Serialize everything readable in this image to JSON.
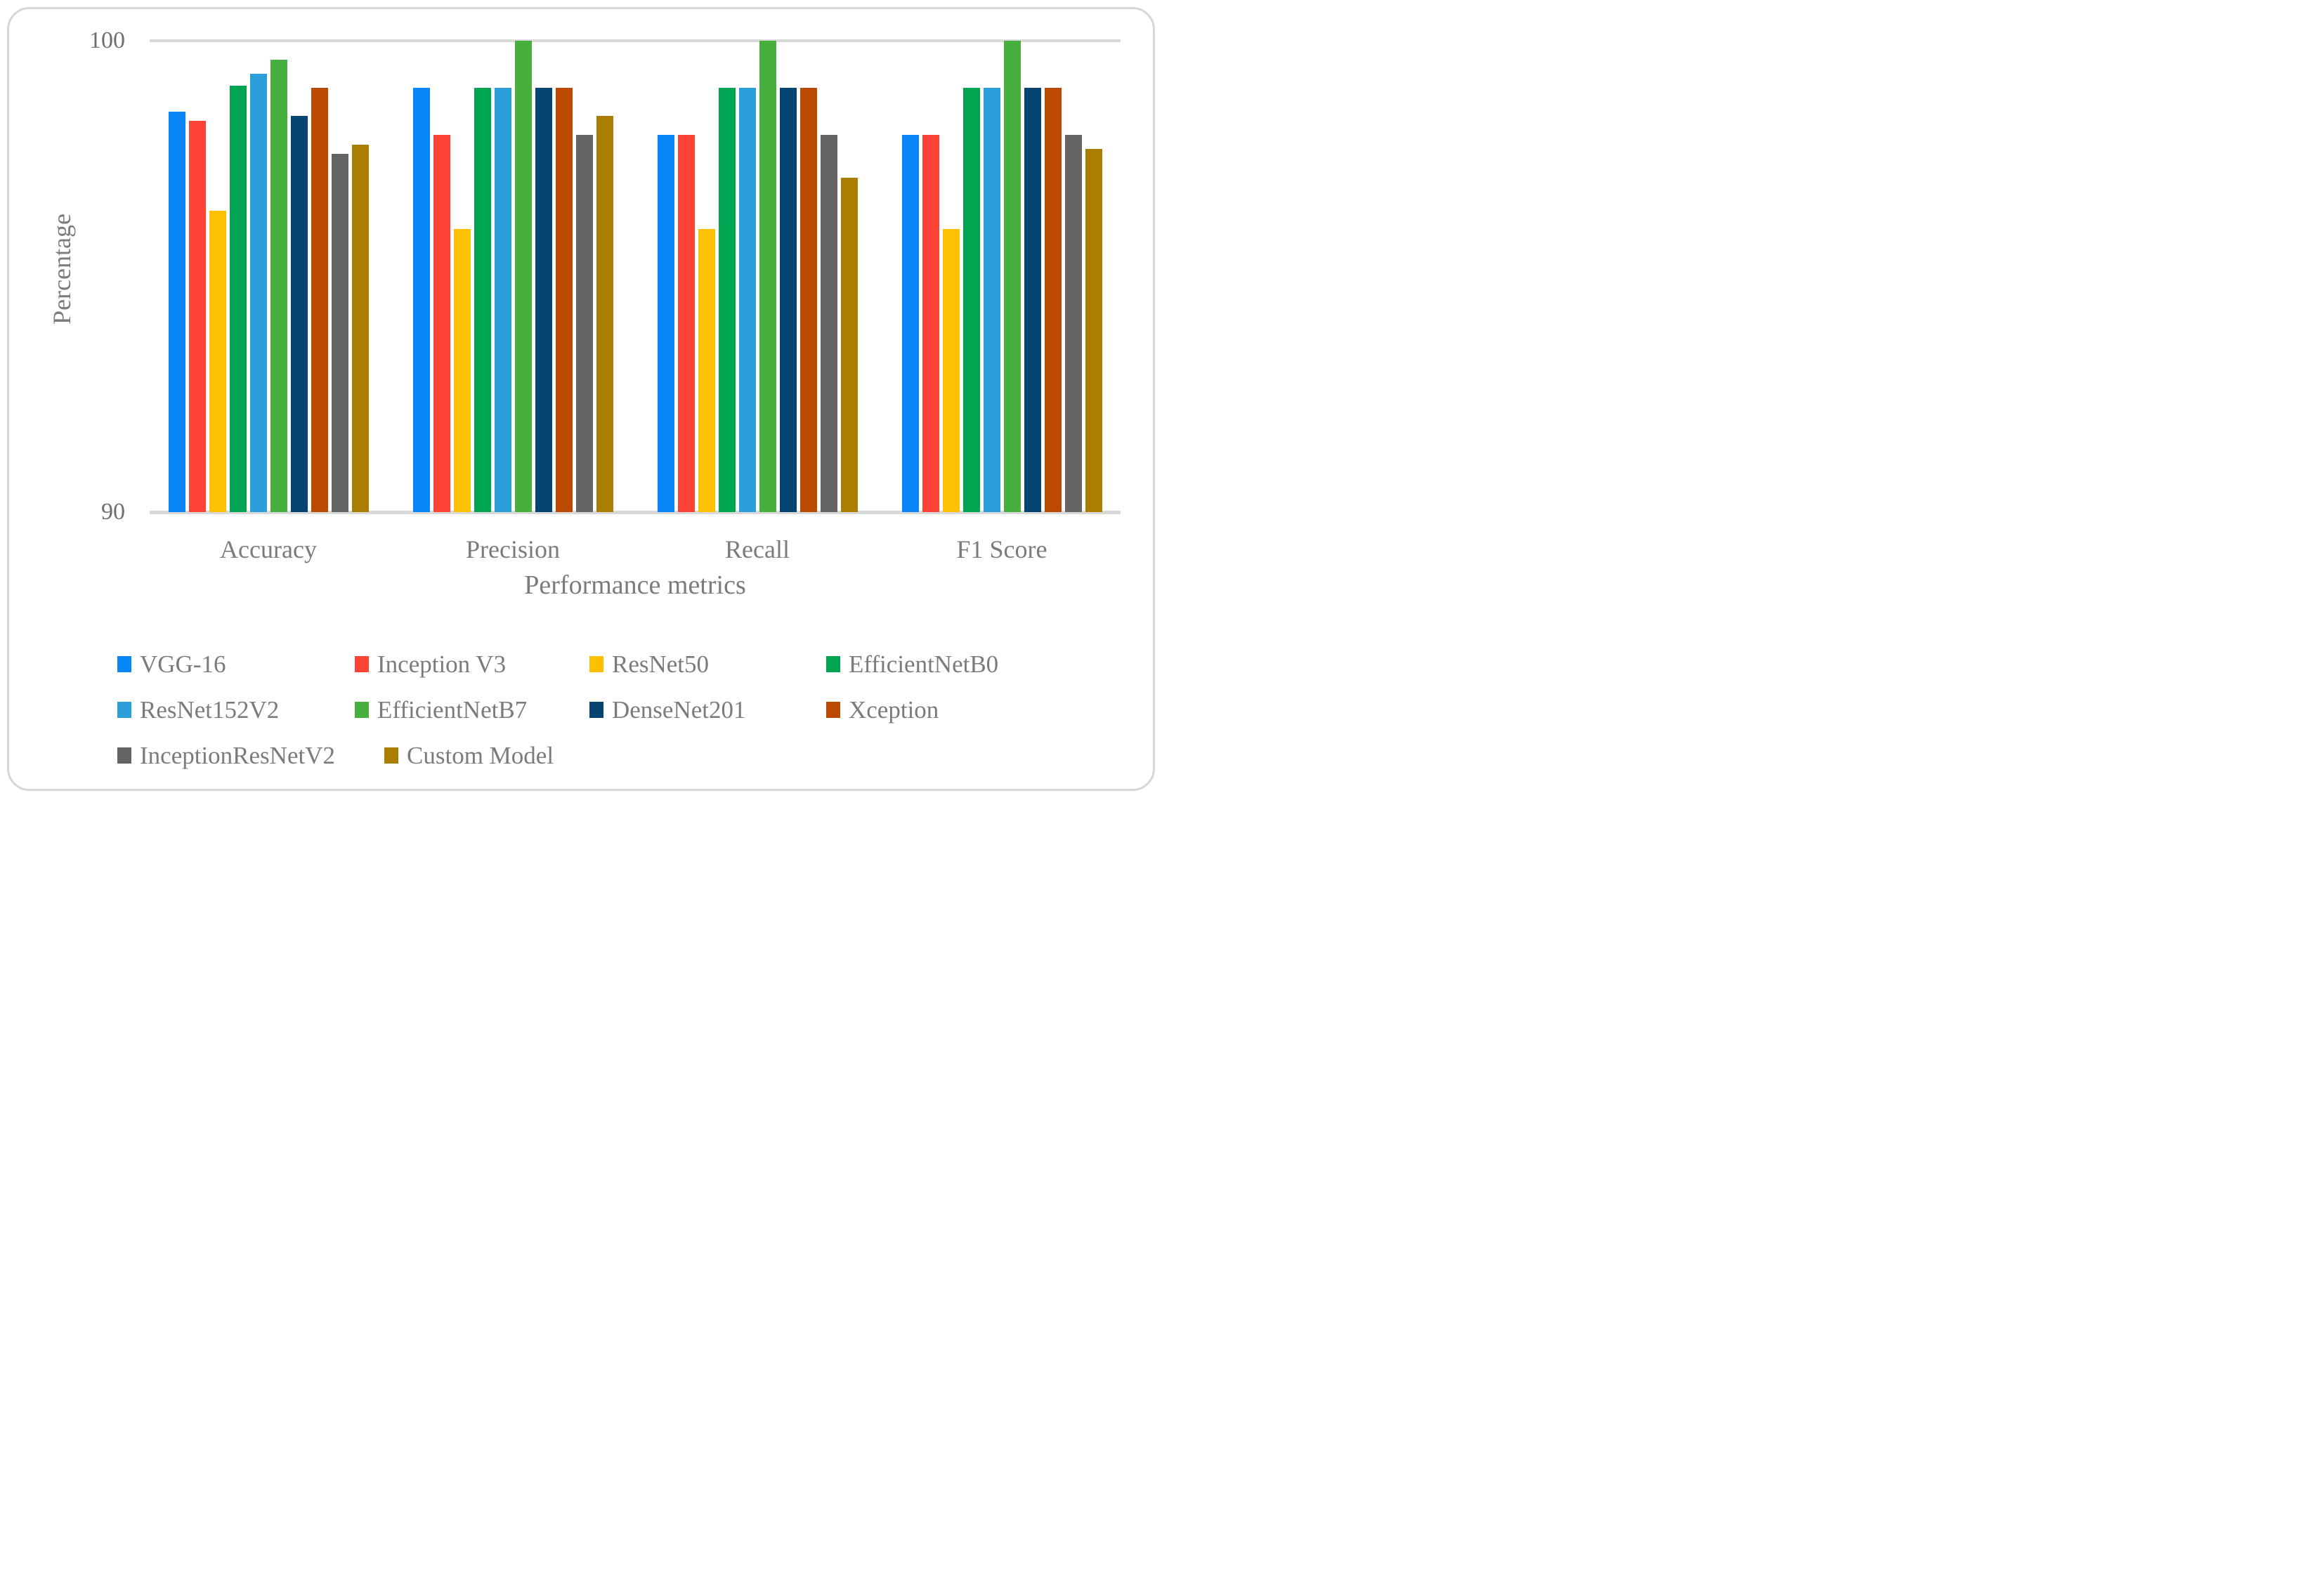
{
  "chart_data": {
    "type": "bar",
    "title": "",
    "xlabel": "Performance metrics",
    "ylabel": "Percentage",
    "ylim": [
      90,
      100
    ],
    "yticks": [
      100,
      90
    ],
    "ytick_labels": [
      "100",
      "90"
    ],
    "grid": "horizontal: gridline at 100 (top) and axis baseline at 90",
    "legend_position": "bottom-left, three rows",
    "categories": [
      "Accuracy",
      "Precision",
      "Recall",
      "F1 Score"
    ],
    "series": [
      {
        "name": "VGG-16",
        "color": "#0886F8",
        "values": [
          98.5,
          99.0,
          98.0,
          98.0
        ]
      },
      {
        "name": "Inception V3",
        "color": "#FC4336",
        "values": [
          98.3,
          98.0,
          98.0,
          98.0
        ]
      },
      {
        "name": "ResNet50",
        "color": "#FEC003",
        "values": [
          96.4,
          96.0,
          96.0,
          96.0
        ]
      },
      {
        "name": "EfficientNetB0",
        "color": "#01A551",
        "values": [
          99.05,
          99.0,
          99.0,
          99.0
        ]
      },
      {
        "name": "ResNet152V2",
        "color": "#2B9FD9",
        "values": [
          99.3,
          99.0,
          99.0,
          99.0
        ]
      },
      {
        "name": "EfficientNetB7",
        "color": "#47AF3D",
        "values": [
          99.6,
          100.0,
          100.0,
          100.0
        ]
      },
      {
        "name": "DenseNet201",
        "color": "#054470",
        "values": [
          98.4,
          99.0,
          99.0,
          99.0
        ]
      },
      {
        "name": "Xception",
        "color": "#BB4A00",
        "values": [
          99.0,
          99.0,
          99.0,
          99.0
        ]
      },
      {
        "name": "InceptionResNetV2",
        "color": "#646464",
        "values": [
          97.6,
          98.0,
          98.0,
          98.0
        ]
      },
      {
        "name": "Custom Model",
        "color": "#AA7E00",
        "values": [
          97.8,
          98.4,
          97.1,
          97.7
        ]
      }
    ],
    "legend_rows": [
      [
        0,
        1,
        2,
        3
      ],
      [
        4,
        5,
        6,
        7
      ],
      [
        8,
        9
      ]
    ]
  },
  "colors": {
    "background": "#FFFFFF",
    "card_border": "#D6D6D6",
    "gridline": "#D9D9D9",
    "axis_text": "#7B7B7B",
    "tick_text": "#6E6E6E"
  }
}
